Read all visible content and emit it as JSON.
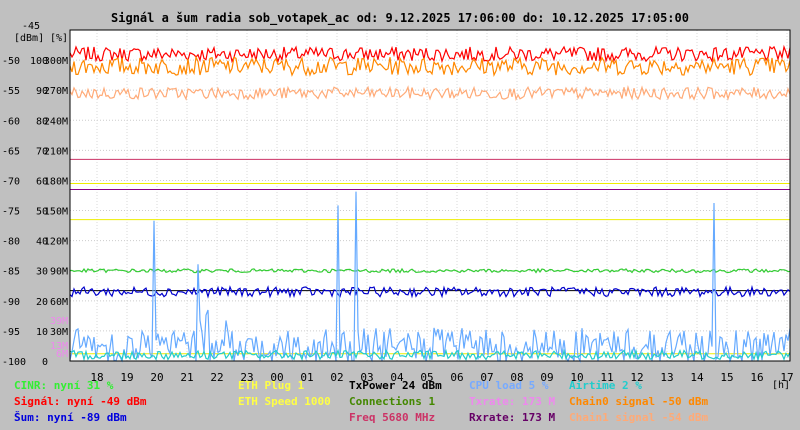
{
  "chart_data": {
    "type": "line",
    "title": "Signál a šum radia sob_votapek_ac od: 9.12.2025 17:06:00 do: 10.12.2025 17:05:00",
    "yunit_left": "[dBm]",
    "yunit_right": "[%]",
    "xunit": "[h]",
    "y_dbm_ticks": [
      -45,
      -50,
      -55,
      -60,
      -65,
      -70,
      -75,
      -80,
      -85,
      -90,
      -95,
      -100
    ],
    "y_pct_ticks": [
      100,
      90,
      80,
      70,
      60,
      50,
      40,
      30,
      20,
      10,
      0
    ],
    "y_speed_ticks": [
      "300M",
      "270M",
      "240M",
      "210M",
      "180M",
      "150M",
      "120M",
      "90M",
      "60M",
      "30M"
    ],
    "y_small_marks": [
      {
        "label": "39M",
        "color": "#ee88ee"
      },
      {
        "label": "13M",
        "color": "#ee88ee"
      },
      {
        "label": "6M",
        "color": "#ee88ee"
      }
    ],
    "x_ticks": [
      "18",
      "19",
      "20",
      "21",
      "22",
      "23",
      "00",
      "01",
      "02",
      "03",
      "04",
      "05",
      "06",
      "07",
      "08",
      "09",
      "10",
      "11",
      "12",
      "13",
      "14",
      "15",
      "16",
      "17"
    ],
    "ylim_dbm": [
      -100,
      -45
    ],
    "grid": true,
    "series": [
      {
        "name": "Signál",
        "unit": "dBm",
        "color": "#ff0000",
        "level": -49,
        "noise": 1.2
      },
      {
        "name": "Chain0 signal",
        "unit": "dBm",
        "color": "#ff8800",
        "level": -51,
        "noise": 1.5
      },
      {
        "name": "Chain1 signal",
        "unit": "dBm",
        "color": "#ffaa77",
        "level": -55.5,
        "noise": 1.0
      },
      {
        "name": "Šum",
        "unit": "dBm",
        "color": "#0000cc",
        "level": -88.5,
        "noise": 0.8
      },
      {
        "name": "CINR",
        "unit": "%",
        "color": "#33cc33",
        "level": 30,
        "noise": 0.6
      },
      {
        "name": "CPU load",
        "unit": "%",
        "color": "#66aaff",
        "level": 5,
        "noise": 6
      },
      {
        "name": "Airtime",
        "unit": "%",
        "color": "#22cccc",
        "level": 2,
        "noise": 1.5
      }
    ],
    "ref_lines": [
      {
        "dbm": -66.5,
        "color": "#cc3366"
      },
      {
        "dbm": -71.5,
        "color": "#880088"
      },
      {
        "dbm": -70.5,
        "color": "#eeee00"
      },
      {
        "dbm": -76.5,
        "color": "#eeee00"
      },
      {
        "dbm": -88.3,
        "color": "#000000"
      },
      {
        "dbm": -98.8,
        "color": "#eeee00"
      }
    ]
  },
  "legend": [
    {
      "text": "CINR: nyní 31 %",
      "color": "#33ee33",
      "col": 0,
      "row": 0
    },
    {
      "text": "Signál: nyní -49 dBm",
      "color": "#ff0000",
      "col": 0,
      "row": 1
    },
    {
      "text": "Šum: nyní -89 dBm",
      "color": "#0000dd",
      "col": 0,
      "row": 2
    },
    {
      "text": "ETH Plug 1",
      "color": "#ffff44",
      "col": 1,
      "row": 0
    },
    {
      "text": "ETH Speed 1000",
      "color": "#ffff44",
      "col": 1,
      "row": 1
    },
    {
      "text": "TxPower 24 dBm",
      "color": "#000000",
      "col": 2,
      "row": 0
    },
    {
      "text": "Connections 1",
      "color": "#448800",
      "col": 2,
      "row": 1
    },
    {
      "text": "Freq 5680 MHz",
      "color": "#cc3366",
      "col": 2,
      "row": 2
    },
    {
      "text": "CPU load 5 %",
      "color": "#77aaff",
      "col": 3,
      "row": 0
    },
    {
      "text": "Txrate: 173 M",
      "color": "#ee88ee",
      "col": 3,
      "row": 1
    },
    {
      "text": "Rxrate: 173 M",
      "color": "#660066",
      "col": 3,
      "row": 2
    },
    {
      "text": "Airtime 2 %",
      "color": "#22cccc",
      "col": 4,
      "row": 0
    },
    {
      "text": "Chain0 signal -50 dBm",
      "color": "#ff8800",
      "col": 4,
      "row": 1
    },
    {
      "text": "Chain1 signal -54 dBm",
      "color": "#ffaa77",
      "col": 4,
      "row": 2
    }
  ]
}
